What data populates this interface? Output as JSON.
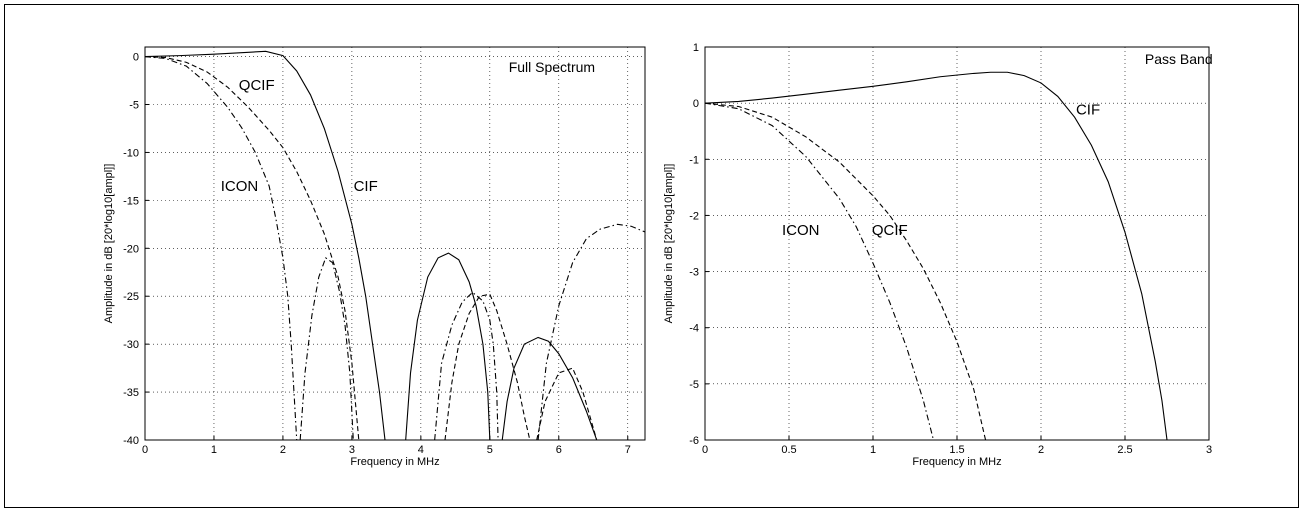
{
  "chart_data": [
    {
      "type": "line",
      "xlabel": "Frequency in MHz",
      "ylabel": "Amplitude in dB [20*log10[ampl]]",
      "xlim": [
        0,
        7.25
      ],
      "ylim": [
        -40,
        1
      ],
      "xticks": [
        0,
        1,
        2,
        3,
        4,
        5,
        6,
        7
      ],
      "yticks": [
        0,
        -5,
        -10,
        -15,
        -20,
        -25,
        -30,
        -35,
        -40
      ],
      "grid": true,
      "annotations": [
        {
          "text": "Full Spectrum",
          "x": 5.9,
          "y": -1.6
        },
        {
          "text": "QCIF",
          "x": 1.62,
          "y": -3.5
        },
        {
          "text": "ICON",
          "x": 1.37,
          "y": -14.0
        },
        {
          "text": "CIF",
          "x": 3.2,
          "y": -14.0
        }
      ],
      "series": [
        {
          "name": "CIF",
          "style": "solid",
          "segments": [
            [
              [
                0,
                0
              ],
              [
                0.5,
                0.1
              ],
              [
                1.0,
                0.25
              ],
              [
                1.5,
                0.45
              ],
              [
                1.75,
                0.55
              ],
              [
                2.0,
                0.1
              ],
              [
                2.2,
                -1.5
              ],
              [
                2.4,
                -4
              ],
              [
                2.6,
                -7.5
              ],
              [
                2.8,
                -12
              ],
              [
                3.0,
                -17.5
              ],
              [
                3.1,
                -21
              ],
              [
                3.2,
                -25
              ],
              [
                3.3,
                -30
              ],
              [
                3.4,
                -35
              ],
              [
                3.48,
                -40
              ]
            ],
            [
              [
                3.78,
                -40
              ],
              [
                3.85,
                -33
              ],
              [
                3.95,
                -27.5
              ],
              [
                4.1,
                -23
              ],
              [
                4.25,
                -21
              ],
              [
                4.4,
                -20.5
              ],
              [
                4.55,
                -21.2
              ],
              [
                4.7,
                -23.5
              ],
              [
                4.8,
                -26
              ],
              [
                4.9,
                -30
              ],
              [
                4.97,
                -35
              ],
              [
                5.0,
                -40
              ]
            ],
            [
              [
                5.18,
                -40
              ],
              [
                5.25,
                -36
              ],
              [
                5.35,
                -32.5
              ],
              [
                5.5,
                -30
              ],
              [
                5.7,
                -29.3
              ],
              [
                5.85,
                -29.7
              ],
              [
                6.0,
                -31
              ],
              [
                6.2,
                -33.5
              ],
              [
                6.4,
                -37
              ],
              [
                6.55,
                -40
              ]
            ]
          ]
        },
        {
          "name": "QCIF",
          "style": "dashed",
          "segments": [
            [
              [
                0,
                0
              ],
              [
                0.3,
                -0.1
              ],
              [
                0.6,
                -0.6
              ],
              [
                0.9,
                -1.6
              ],
              [
                1.2,
                -3.2
              ],
              [
                1.5,
                -5.3
              ],
              [
                1.8,
                -7.7
              ],
              [
                2.0,
                -9.5
              ],
              [
                2.2,
                -12
              ],
              [
                2.4,
                -15
              ],
              [
                2.6,
                -18.5
              ],
              [
                2.8,
                -23
              ],
              [
                2.9,
                -26.5
              ],
              [
                3.0,
                -32
              ],
              [
                3.05,
                -36
              ],
              [
                3.1,
                -40
              ]
            ],
            [
              [
                4.35,
                -40
              ],
              [
                4.45,
                -34
              ],
              [
                4.55,
                -30
              ],
              [
                4.7,
                -26.8
              ],
              [
                4.85,
                -25
              ],
              [
                5.0,
                -24.8
              ],
              [
                5.1,
                -26.5
              ],
              [
                5.25,
                -30
              ],
              [
                5.4,
                -34
              ],
              [
                5.5,
                -37.5
              ],
              [
                5.58,
                -40
              ]
            ],
            [
              [
                5.68,
                -40
              ],
              [
                5.8,
                -36
              ],
              [
                6.0,
                -33
              ],
              [
                6.2,
                -32.5
              ],
              [
                6.35,
                -35
              ],
              [
                6.45,
                -37.5
              ],
              [
                6.55,
                -40
              ]
            ]
          ]
        },
        {
          "name": "ICON",
          "style": "dashdot",
          "segments": [
            [
              [
                0,
                0
              ],
              [
                0.3,
                -0.2
              ],
              [
                0.6,
                -1.0
              ],
              [
                0.9,
                -2.8
              ],
              [
                1.2,
                -5.3
              ],
              [
                1.4,
                -7.4
              ],
              [
                1.6,
                -10
              ],
              [
                1.8,
                -13.5
              ],
              [
                1.9,
                -17
              ],
              [
                2.0,
                -21
              ],
              [
                2.07,
                -25
              ],
              [
                2.12,
                -30
              ],
              [
                2.16,
                -35
              ],
              [
                2.2,
                -40
              ]
            ],
            [
              [
                2.25,
                -40
              ],
              [
                2.32,
                -33
              ],
              [
                2.42,
                -27
              ],
              [
                2.52,
                -23
              ],
              [
                2.62,
                -21
              ],
              [
                2.72,
                -21.5
              ],
              [
                2.82,
                -24.5
              ],
              [
                2.9,
                -28
              ],
              [
                2.97,
                -33
              ],
              [
                3.02,
                -40
              ]
            ],
            [
              [
                4.2,
                -40
              ],
              [
                4.3,
                -32
              ],
              [
                4.45,
                -28
              ],
              [
                4.6,
                -25.6
              ],
              [
                4.75,
                -24.6
              ],
              [
                4.9,
                -25.5
              ],
              [
                5.0,
                -27.5
              ],
              [
                5.05,
                -30
              ],
              [
                5.1,
                -35
              ],
              [
                5.12,
                -40
              ]
            ],
            [
              [
                5.7,
                -40
              ],
              [
                5.82,
                -32
              ],
              [
                6.0,
                -26
              ],
              [
                6.2,
                -21.5
              ],
              [
                6.4,
                -19
              ],
              [
                6.6,
                -18
              ],
              [
                6.85,
                -17.5
              ],
              [
                7.05,
                -17.7
              ],
              [
                7.25,
                -18.3
              ]
            ]
          ]
        }
      ]
    },
    {
      "type": "line",
      "xlabel": "Frequency in MHz",
      "ylabel": "Amplitude in dB [20*log10[ampl]]",
      "xlim": [
        0,
        3
      ],
      "ylim": [
        -6,
        1
      ],
      "xticks": [
        0,
        0.5,
        1,
        1.5,
        2,
        2.5,
        3
      ],
      "yticks": [
        1,
        0,
        -1,
        -2,
        -3,
        -4,
        -5,
        -6
      ],
      "grid": true,
      "annotations": [
        {
          "text": "Pass Band",
          "x": 2.82,
          "y": 0.7
        },
        {
          "text": "CIF",
          "x": 2.28,
          "y": -0.2
        },
        {
          "text": "ICON",
          "x": 0.57,
          "y": -2.35
        },
        {
          "text": "QCIF",
          "x": 1.1,
          "y": -2.35
        }
      ],
      "series": [
        {
          "name": "CIF",
          "style": "solid",
          "segments": [
            [
              [
                0,
                0
              ],
              [
                0.2,
                0.03
              ],
              [
                0.4,
                0.09
              ],
              [
                0.6,
                0.16
              ],
              [
                0.8,
                0.23
              ],
              [
                1.0,
                0.3
              ],
              [
                1.2,
                0.38
              ],
              [
                1.4,
                0.47
              ],
              [
                1.6,
                0.53
              ],
              [
                1.7,
                0.55
              ],
              [
                1.8,
                0.55
              ],
              [
                1.9,
                0.49
              ],
              [
                2.0,
                0.36
              ],
              [
                2.1,
                0.12
              ],
              [
                2.2,
                -0.25
              ],
              [
                2.3,
                -0.75
              ],
              [
                2.4,
                -1.4
              ],
              [
                2.5,
                -2.3
              ],
              [
                2.6,
                -3.4
              ],
              [
                2.68,
                -4.6
              ],
              [
                2.72,
                -5.3
              ],
              [
                2.75,
                -6.0
              ]
            ]
          ]
        },
        {
          "name": "QCIF",
          "style": "dashed",
          "segments": [
            [
              [
                0,
                0
              ],
              [
                0.2,
                -0.06
              ],
              [
                0.4,
                -0.25
              ],
              [
                0.6,
                -0.6
              ],
              [
                0.8,
                -1.05
              ],
              [
                1.0,
                -1.65
              ],
              [
                1.1,
                -2.0
              ],
              [
                1.2,
                -2.45
              ],
              [
                1.3,
                -2.95
              ],
              [
                1.4,
                -3.55
              ],
              [
                1.5,
                -4.25
              ],
              [
                1.6,
                -5.1
              ],
              [
                1.67,
                -6.0
              ]
            ]
          ]
        },
        {
          "name": "ICON",
          "style": "dashdot",
          "segments": [
            [
              [
                0,
                0
              ],
              [
                0.2,
                -0.1
              ],
              [
                0.4,
                -0.4
              ],
              [
                0.6,
                -0.95
              ],
              [
                0.8,
                -1.7
              ],
              [
                0.9,
                -2.2
              ],
              [
                1.0,
                -2.85
              ],
              [
                1.1,
                -3.55
              ],
              [
                1.2,
                -4.35
              ],
              [
                1.3,
                -5.3
              ],
              [
                1.36,
                -6.0
              ]
            ]
          ]
        }
      ]
    }
  ]
}
